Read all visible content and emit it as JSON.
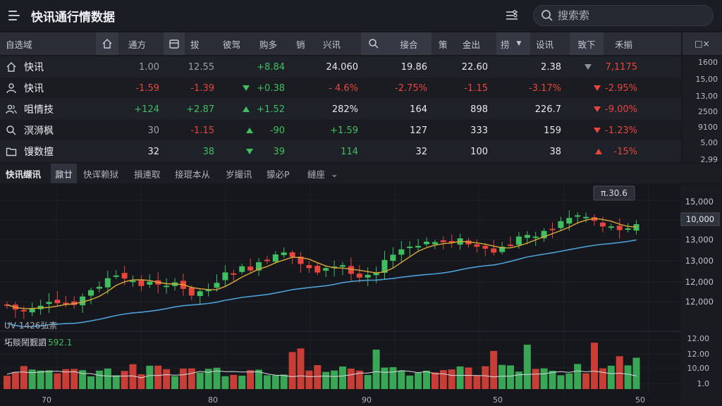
{
  "header": {
    "title": "快讯通行情数据",
    "search_placeholder": "搜索索"
  },
  "table": {
    "headers": [
      "自选域",
      "通方",
      "拔",
      "彼驾",
      "购多",
      "销",
      "兴讯",
      "接合",
      "策",
      "金出",
      "捞",
      "设讯",
      "致下",
      "禾揃"
    ],
    "corner": "□×",
    "rows": [
      {
        "name": "快讯",
        "icon": "home-icon",
        "c1": "1.00",
        "c2": "12.55",
        "c3": "+8.84",
        "c4": "24.060",
        "c5": "19.86",
        "c6": "22.60",
        "c7": "2.38",
        "c8": "7,1175"
      },
      {
        "name": "快讯",
        "icon": "user-icon",
        "c1": "-1.59",
        "c2": "-1.39",
        "c3": "+0.38",
        "c4": "- 4.6%",
        "c5": "-2.75%",
        "c6": "-1.15",
        "c7": "-3.17%",
        "c8": "-2.95%"
      },
      {
        "name": "咀情技",
        "icon": "users-icon",
        "c1": "+124",
        "c2": "+2.87",
        "c3": "+1.52",
        "c4": "282%",
        "c5": "164",
        "c6": "898",
        "c7": "226.7",
        "c8": "-9.00%"
      },
      {
        "name": "溟浉枫",
        "icon": "search-icon",
        "c1": "30",
        "c2": "-1.15",
        "c3": "-90",
        "c4": "+1.59",
        "c5": "127",
        "c6": "333",
        "c7": "159",
        "c8": "-1.23%"
      },
      {
        "name": "馒数擅",
        "icon": "folder-icon",
        "c1": "32",
        "c2": "38",
        "c3": "39",
        "c4": "114",
        "c5": "32",
        "c6": "100",
        "c7": "38",
        "c8": "-15%"
      }
    ]
  },
  "side_scale": [
    "1600",
    "15,00",
    "13,00",
    "2500",
    "9100",
    "5,00",
    "2,99"
  ],
  "tabs": {
    "first": "快讯缬讯",
    "items": [
      "鼐廿",
      "快诨赖狱",
      "損連取",
      "接琨本从",
      "岁撮讯",
      "獴必P",
      "縺座"
    ],
    "dropdown": "⌄"
  },
  "chart": {
    "price_label": "π.30.6",
    "current_price": "10,000",
    "y_labels": [
      "15,000",
      "13,000",
      "13,000",
      "12,000",
      "12,000"
    ],
    "indicator_label": "UV 1426弘柰",
    "volume_label": "坧赕鬧觐訵",
    "volume_value": "592.1",
    "volume_y_labels": [
      "12.00",
      "12.00",
      "10,00",
      "1.0"
    ],
    "x_labels": [
      "70",
      "80",
      "90",
      "50",
      "50"
    ],
    "colors": {
      "up": "#3fbf5f",
      "down": "#e8453c",
      "ma_fast": "#d9a83a",
      "ma_slow": "#4d9fd6"
    }
  }
}
